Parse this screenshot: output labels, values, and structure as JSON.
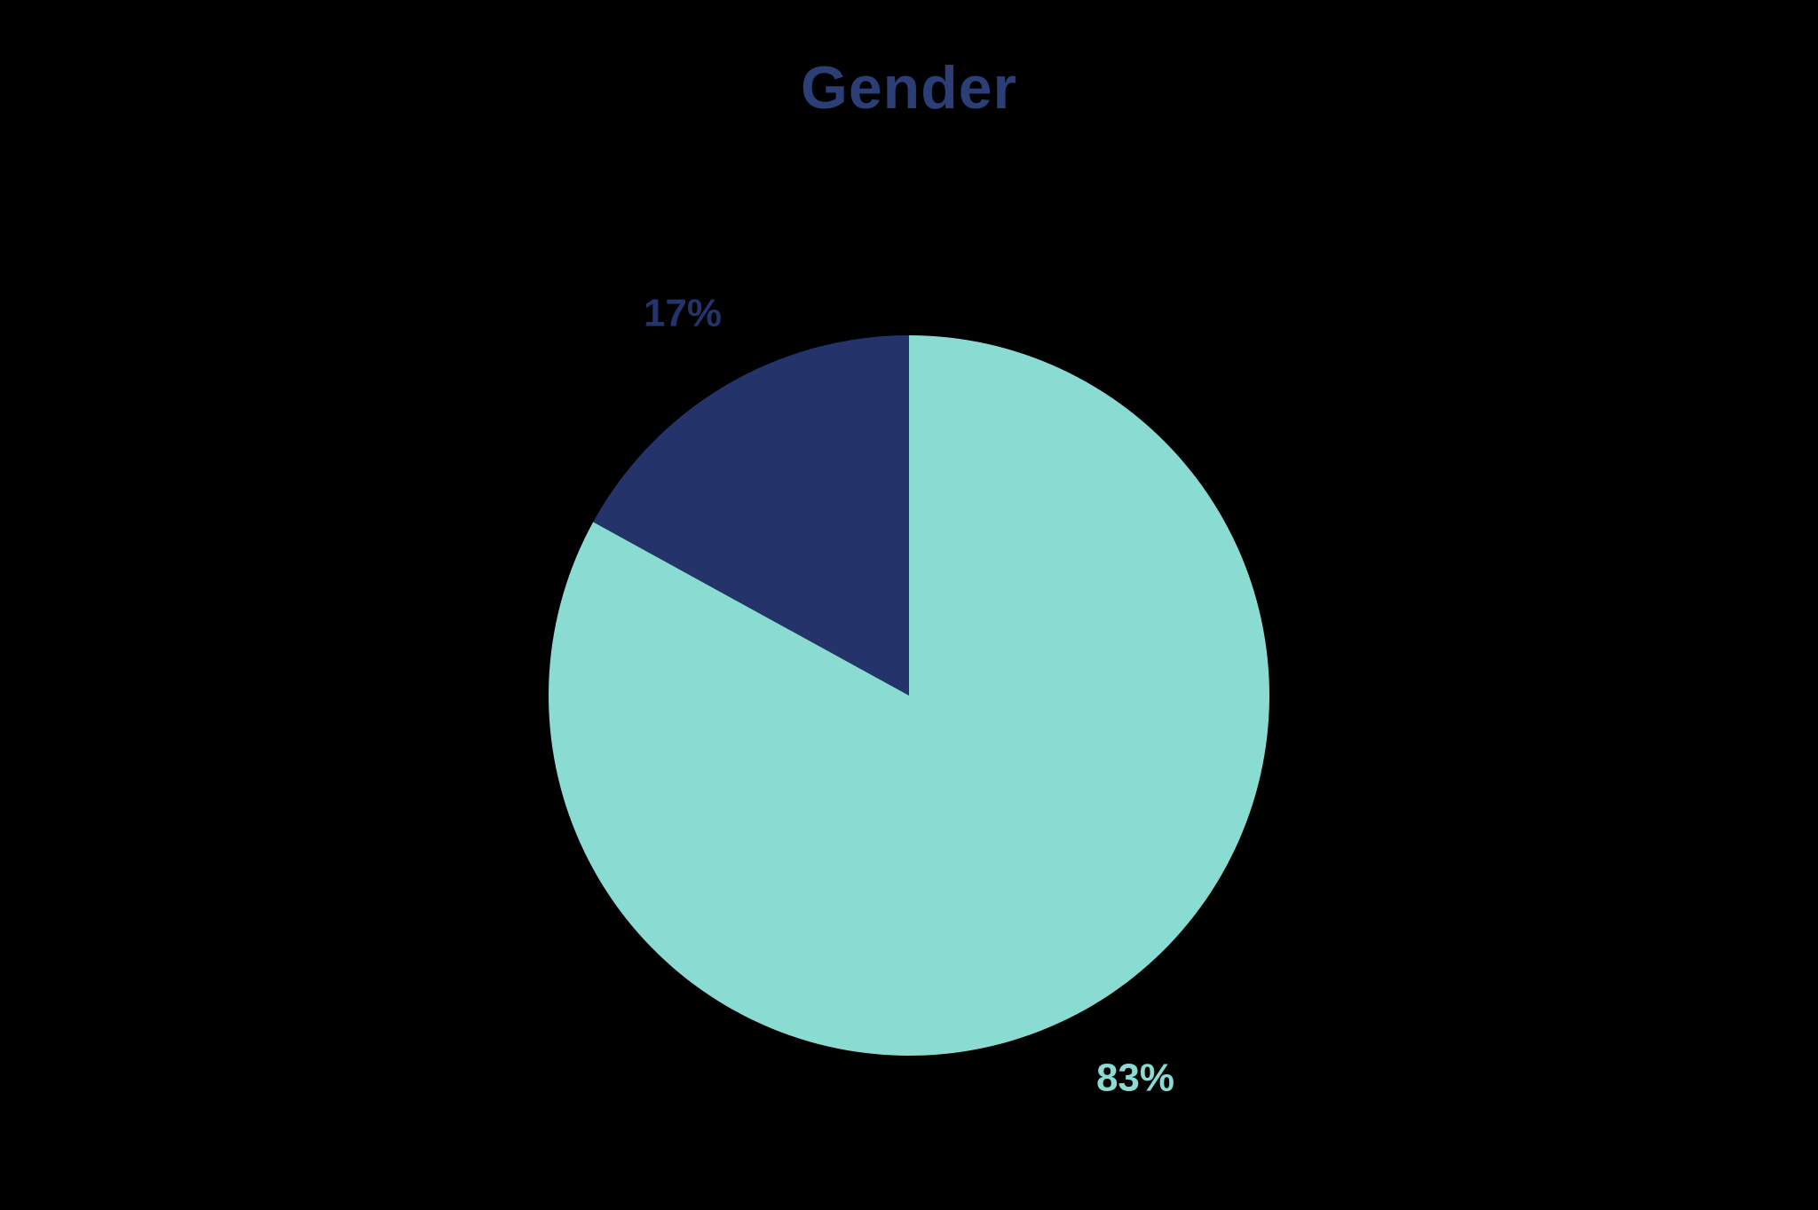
{
  "page": {
    "background_color": "#000000"
  },
  "chart_data": {
    "type": "pie",
    "title": "Gender",
    "title_color": "#2B3E76",
    "start_angle_deg": -90,
    "direction": "clockwise",
    "labels_position": "outside",
    "legend": "none",
    "slices": [
      {
        "label": "83%",
        "value": 83,
        "color": "#8ADCD2"
      },
      {
        "label": "17%",
        "value": 17,
        "color": "#24346B"
      }
    ]
  }
}
